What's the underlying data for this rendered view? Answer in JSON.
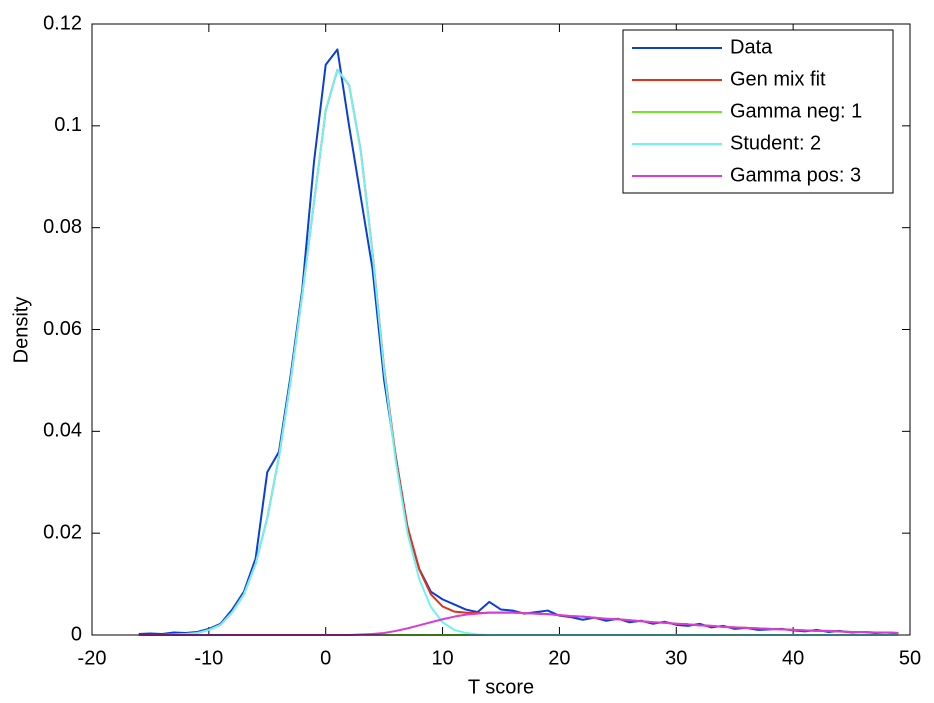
{
  "chart_data": {
    "type": "line",
    "x_label": "T score",
    "y_label": "Density",
    "x": [
      -16,
      -15,
      -14,
      -13,
      -12,
      -11,
      -10,
      -9,
      -8,
      -7,
      -6,
      -5,
      -4,
      -3,
      -2,
      -1,
      0,
      1,
      2,
      3,
      4,
      5,
      6,
      7,
      8,
      9,
      10,
      11,
      12,
      13,
      14,
      15,
      16,
      17,
      18,
      19,
      20,
      21,
      22,
      23,
      24,
      25,
      26,
      27,
      28,
      29,
      30,
      31,
      32,
      33,
      34,
      35,
      36,
      37,
      38,
      39,
      40,
      41,
      42,
      43,
      44,
      45,
      46,
      47,
      48,
      49
    ],
    "series": [
      {
        "name": "Data",
        "color": "#0a3fd6",
        "values": [
          0.0002,
          0.0003,
          0.0002,
          0.0005,
          0.0004,
          0.0006,
          0.0012,
          0.0022,
          0.005,
          0.0085,
          0.015,
          0.032,
          0.036,
          0.051,
          0.068,
          0.093,
          0.112,
          0.115,
          0.1,
          0.086,
          0.072,
          0.05,
          0.035,
          0.021,
          0.013,
          0.0085,
          0.007,
          0.006,
          0.005,
          0.0045,
          0.0065,
          0.005,
          0.0048,
          0.0042,
          0.0045,
          0.0048,
          0.0038,
          0.0035,
          0.003,
          0.0034,
          0.0028,
          0.0032,
          0.0025,
          0.0028,
          0.0022,
          0.0026,
          0.002,
          0.0018,
          0.0022,
          0.0015,
          0.0018,
          0.0012,
          0.0014,
          0.001,
          0.0011,
          0.0012,
          0.0009,
          0.0007,
          0.001,
          0.0006,
          0.0008,
          0.0005,
          0.0006,
          0.0004,
          0.0005,
          0.0003
        ]
      },
      {
        "name": "Gen mix fit",
        "color": "#e0321a",
        "values": [
          0,
          0,
          0,
          0.0001,
          0.0002,
          0.0004,
          0.001,
          0.002,
          0.0045,
          0.008,
          0.014,
          0.023,
          0.035,
          0.05,
          0.067,
          0.085,
          0.103,
          0.111,
          0.108,
          0.0951,
          0.0752,
          0.0524,
          0.0348,
          0.0213,
          0.0129,
          0.008,
          0.0056,
          0.0046,
          0.0044,
          0.0043,
          0.0044,
          0.0044,
          0.0044,
          0.0043,
          0.0042,
          0.0041,
          0.0039,
          0.0037,
          0.0036,
          0.0034,
          0.0032,
          0.0031,
          0.0029,
          0.0027,
          0.0025,
          0.0024,
          0.0022,
          0.0021,
          0.0019,
          0.0018,
          0.0016,
          0.0015,
          0.0014,
          0.0013,
          0.0012,
          0.0011,
          0.001,
          0.0009,
          0.0008,
          0.0008,
          0.0007,
          0.0006,
          0.0006,
          0.0005,
          0.0005,
          0.0004
        ]
      },
      {
        "name": "Gamma neg: 1",
        "color": "#6fe62a",
        "values": [
          0,
          0,
          0,
          0,
          0,
          0,
          0,
          0,
          0,
          0,
          0,
          0,
          0,
          0,
          0,
          0,
          0,
          0,
          0,
          0,
          0,
          0,
          0,
          0,
          0,
          0,
          0,
          0,
          0,
          0,
          0,
          0,
          0,
          0,
          0,
          0,
          0,
          0,
          0,
          0,
          0,
          0,
          0,
          0,
          0,
          0,
          0,
          0,
          0,
          0,
          0,
          0,
          0,
          0,
          0,
          0,
          0,
          0,
          0,
          0,
          0,
          0,
          0,
          0,
          0,
          0
        ]
      },
      {
        "name": "Student: 2",
        "color": "#6ff2f2",
        "values": [
          0,
          0,
          0,
          0.0001,
          0.0002,
          0.0004,
          0.001,
          0.002,
          0.0045,
          0.008,
          0.014,
          0.023,
          0.035,
          0.05,
          0.067,
          0.085,
          0.103,
          0.111,
          0.108,
          0.095,
          0.075,
          0.052,
          0.034,
          0.02,
          0.011,
          0.0055,
          0.0025,
          0.001,
          0.0004,
          0.0001,
          0,
          0,
          0,
          0,
          0,
          0,
          0,
          0,
          0,
          0,
          0,
          0,
          0,
          0,
          0,
          0,
          0,
          0,
          0,
          0,
          0,
          0,
          0,
          0,
          0,
          0,
          0,
          0,
          0,
          0,
          0,
          0,
          0,
          0,
          0,
          0
        ]
      },
      {
        "name": "Gamma pos: 3",
        "color": "#d63ed6",
        "values": [
          0,
          0,
          0,
          0,
          0,
          0,
          0,
          0,
          0,
          0,
          0,
          0,
          0,
          0,
          0,
          0,
          0,
          0,
          0,
          0.0001,
          0.0002,
          0.0004,
          0.0008,
          0.0013,
          0.0019,
          0.0025,
          0.0031,
          0.0036,
          0.004,
          0.0042,
          0.0044,
          0.0044,
          0.0044,
          0.0043,
          0.0042,
          0.0041,
          0.0039,
          0.0037,
          0.0036,
          0.0034,
          0.0032,
          0.0031,
          0.0029,
          0.0027,
          0.0025,
          0.0024,
          0.0022,
          0.0021,
          0.0019,
          0.0018,
          0.0016,
          0.0015,
          0.0014,
          0.0013,
          0.0012,
          0.0011,
          0.001,
          0.0009,
          0.0008,
          0.0008,
          0.0007,
          0.0006,
          0.0006,
          0.0005,
          0.0005,
          0.0004
        ]
      }
    ],
    "xlim": [
      -20,
      50
    ],
    "xticks": [
      -20,
      -10,
      0,
      10,
      20,
      30,
      40,
      50
    ],
    "ylim": [
      0,
      0.12
    ],
    "yticks": [
      0,
      0.02,
      0.04,
      0.06,
      0.08,
      0.1,
      0.12
    ],
    "legend": "top-right"
  }
}
